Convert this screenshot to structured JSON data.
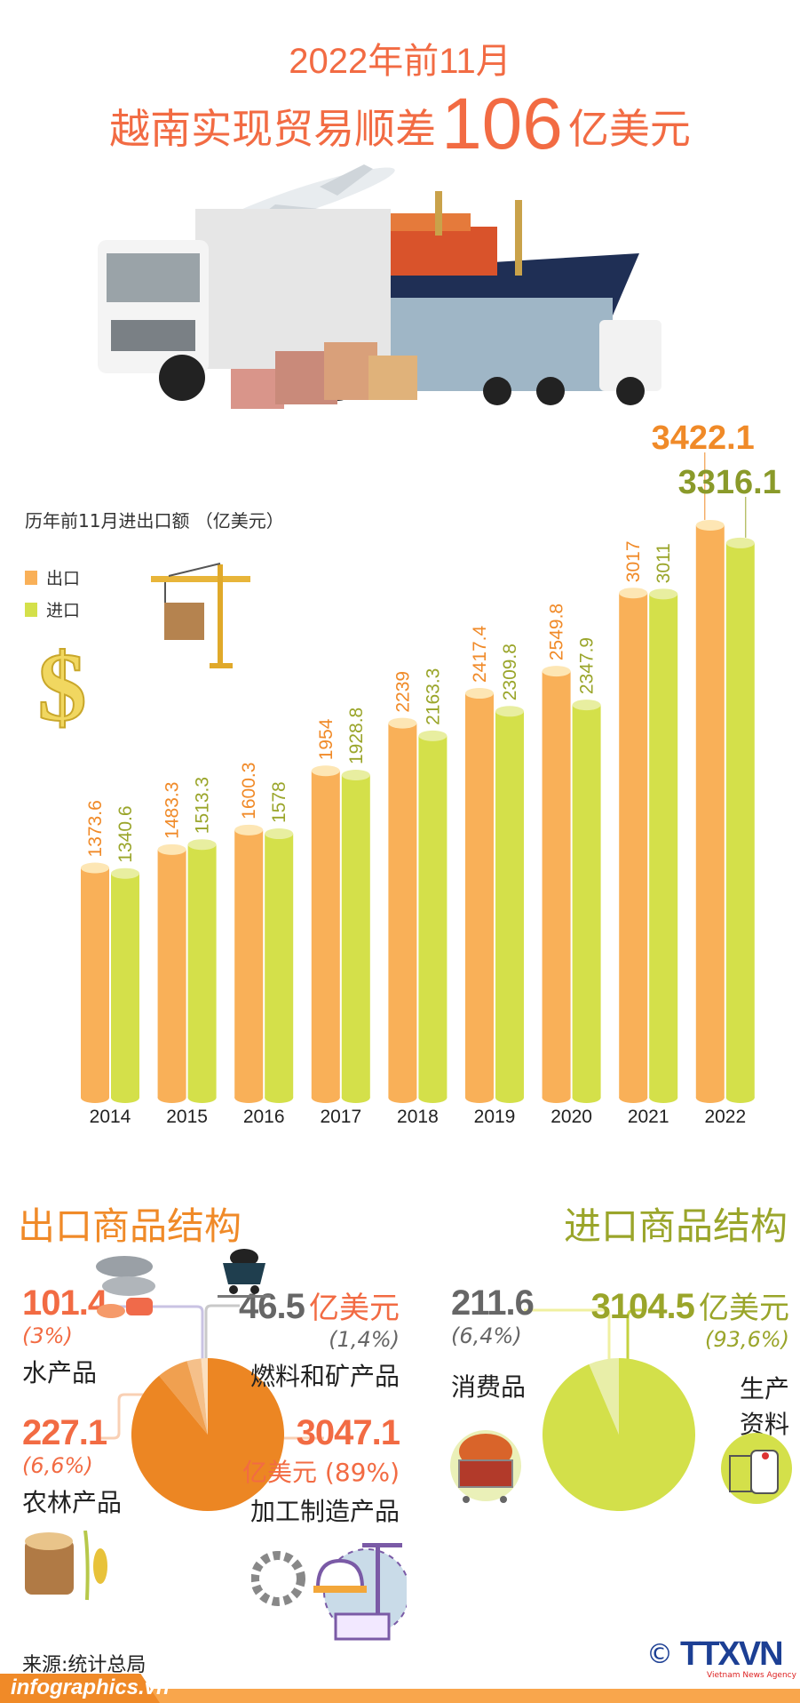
{
  "header": {
    "title_line1": "2022年前11月",
    "title_line2_prefix": "越南实现贸易顺差",
    "title_line2_number": "106",
    "title_line2_suffix": "亿美元"
  },
  "chart_data": {
    "type": "bar",
    "title": "历年前11月进出口额 （亿美元）",
    "categories": [
      "2014",
      "2015",
      "2016",
      "2017",
      "2018",
      "2019",
      "2020",
      "2021",
      "2022"
    ],
    "series": [
      {
        "name": "出口",
        "color": "#f9b058",
        "values": [
          1373.6,
          1483.3,
          1600.3,
          1954,
          2239,
          2417.4,
          2549.8,
          3017,
          3422.1
        ]
      },
      {
        "name": "进口",
        "color": "#d4e04a",
        "values": [
          1340.6,
          1513.3,
          1578,
          1928.8,
          2163.3,
          2309.8,
          2347.9,
          3011,
          3316.1
        ]
      }
    ],
    "labels": {
      "export": [
        "1373.6",
        "1483.3",
        "1600.3",
        "1954",
        "2239",
        "2417.4",
        "2549.8",
        "3017",
        "3422.1"
      ],
      "import": [
        "1340.6",
        "1513.3",
        "1578",
        "1928.8",
        "2163.3",
        "2309.8",
        "2347.9",
        "3011",
        "3316.1"
      ]
    },
    "ylim": [
      0,
      3500
    ],
    "grid": false,
    "legend_position": "top-left"
  },
  "export_structure": {
    "title": "出口商品结构",
    "color": "#f08a28",
    "items": [
      {
        "value": "101.4",
        "pct": "(3%)",
        "name": "水产品",
        "share": 3
      },
      {
        "value": "46.5",
        "unit": "亿美元",
        "pct": "(1,4%)",
        "name": "燃料和矿产品",
        "share": 1.4
      },
      {
        "value": "227.1",
        "pct": "(6,6%)",
        "name": "农林产品",
        "share": 6.6
      },
      {
        "value": "3047.1",
        "unit_pct": "亿美元 (89%)",
        "name": "加工制造产品",
        "share": 89
      }
    ]
  },
  "import_structure": {
    "title": "进口商品结构",
    "color": "#9aa52a",
    "items": [
      {
        "value": "211.6",
        "pct": "(6,4%)",
        "name": "消费品",
        "share": 6.4
      },
      {
        "value": "3104.5",
        "unit": "亿美元",
        "pct": "(93,6%)",
        "name_line1": "生产",
        "name_line2": "资料",
        "share": 93.6
      }
    ]
  },
  "footer": {
    "source": "来源:统计总局",
    "site": "infographics.vn",
    "logo_copyright": "©",
    "logo_text": "TTXVN",
    "logo_sub": "Vietnam News Agency"
  }
}
